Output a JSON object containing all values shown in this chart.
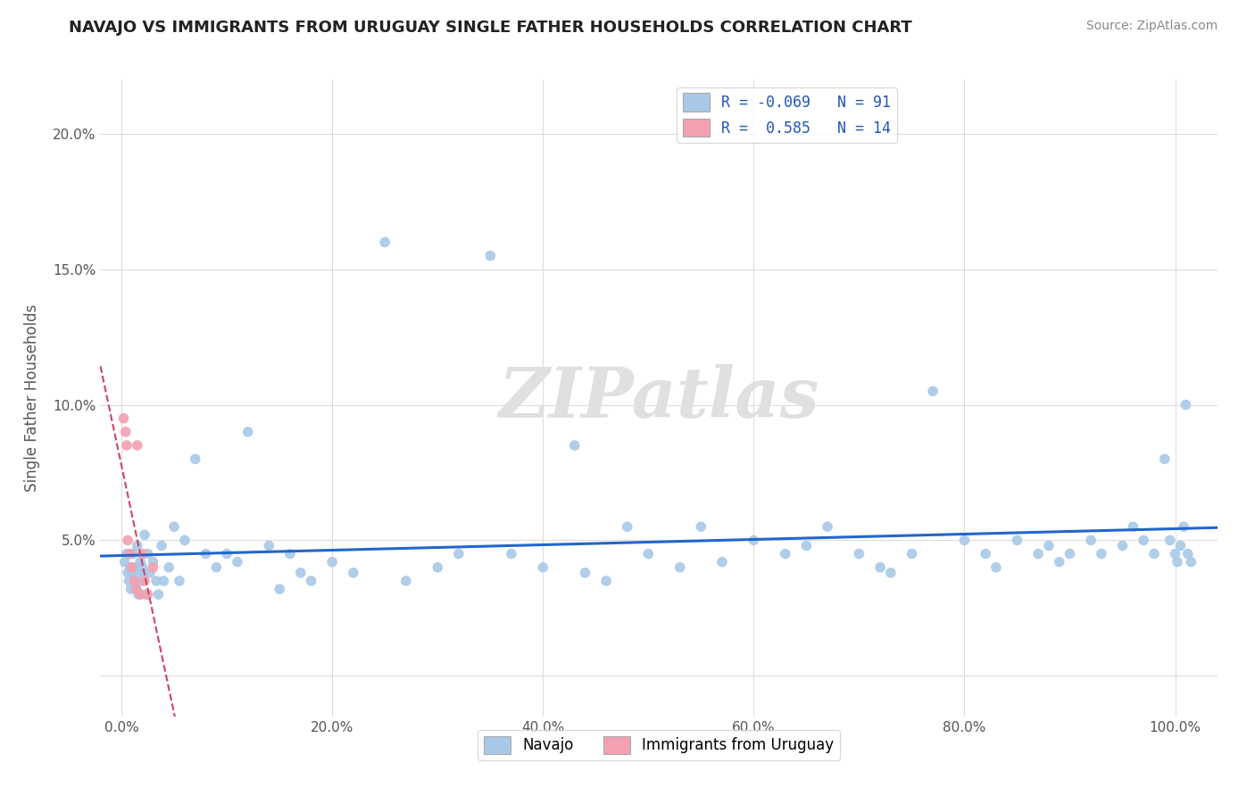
{
  "title": "NAVAJO VS IMMIGRANTS FROM URUGUAY SINGLE FATHER HOUSEHOLDS CORRELATION CHART",
  "source": "Source: ZipAtlas.com",
  "ylabel": "Single Father Households",
  "navajo_color": "#a8c8e8",
  "uruguay_color": "#f4a0b0",
  "navajo_R": -0.069,
  "navajo_N": 91,
  "uruguay_R": 0.585,
  "uruguay_N": 14,
  "navajo_line_color": "#2266cc",
  "uruguay_line_color": "#cc4466",
  "watermark": "ZIPatlas",
  "background_color": "#ffffff",
  "grid_color": "#dddddd",
  "ytick_values": [
    0,
    5,
    10,
    15,
    20
  ],
  "xtick_values": [
    0,
    20,
    40,
    60,
    80,
    100
  ],
  "navajo_x": [
    0.3,
    0.5,
    0.6,
    0.7,
    0.8,
    0.9,
    1.0,
    1.1,
    1.2,
    1.3,
    1.4,
    1.5,
    1.6,
    1.7,
    1.8,
    1.9,
    2.0,
    2.1,
    2.2,
    2.3,
    2.5,
    2.7,
    3.0,
    3.3,
    3.5,
    3.8,
    4.0,
    4.5,
    5.0,
    5.5,
    6.0,
    7.0,
    8.0,
    9.0,
    10.0,
    11.0,
    12.0,
    14.0,
    15.0,
    16.0,
    17.0,
    18.0,
    20.0,
    22.0,
    25.0,
    27.0,
    30.0,
    32.0,
    35.0,
    37.0,
    40.0,
    43.0,
    44.0,
    46.0,
    48.0,
    50.0,
    53.0,
    55.0,
    57.0,
    60.0,
    63.0,
    65.0,
    67.0,
    70.0,
    72.0,
    73.0,
    75.0,
    77.0,
    80.0,
    82.0,
    83.0,
    85.0,
    87.0,
    88.0,
    89.0,
    90.0,
    92.0,
    93.0,
    95.0,
    96.0,
    97.0,
    98.0,
    99.0,
    99.5,
    100.0,
    100.2,
    100.5,
    100.8,
    101.0,
    101.2,
    101.5
  ],
  "navajo_y": [
    4.2,
    4.5,
    3.8,
    3.5,
    4.0,
    3.2,
    3.8,
    4.5,
    4.0,
    3.5,
    3.2,
    4.8,
    3.0,
    3.8,
    4.2,
    3.5,
    4.0,
    3.8,
    5.2,
    3.0,
    4.5,
    3.8,
    4.2,
    3.5,
    3.0,
    4.8,
    3.5,
    4.0,
    5.5,
    3.5,
    5.0,
    8.0,
    4.5,
    4.0,
    4.5,
    4.2,
    9.0,
    4.8,
    3.2,
    4.5,
    3.8,
    3.5,
    4.2,
    3.8,
    16.0,
    3.5,
    4.0,
    4.5,
    15.5,
    4.5,
    4.0,
    8.5,
    3.8,
    3.5,
    5.5,
    4.5,
    4.0,
    5.5,
    4.2,
    5.0,
    4.5,
    4.8,
    5.5,
    4.5,
    4.0,
    3.8,
    4.5,
    10.5,
    5.0,
    4.5,
    4.0,
    5.0,
    4.5,
    4.8,
    4.2,
    4.5,
    5.0,
    4.5,
    4.8,
    5.5,
    5.0,
    4.5,
    8.0,
    5.0,
    4.5,
    4.2,
    4.8,
    5.5,
    10.0,
    4.5,
    4.2
  ],
  "uruguay_x": [
    0.2,
    0.4,
    0.5,
    0.6,
    0.8,
    1.0,
    1.2,
    1.4,
    1.5,
    1.8,
    2.0,
    2.2,
    2.5,
    3.0
  ],
  "uruguay_y": [
    9.5,
    9.0,
    8.5,
    5.0,
    4.5,
    4.0,
    3.5,
    3.2,
    8.5,
    3.0,
    4.5,
    3.5,
    3.0,
    4.0
  ]
}
